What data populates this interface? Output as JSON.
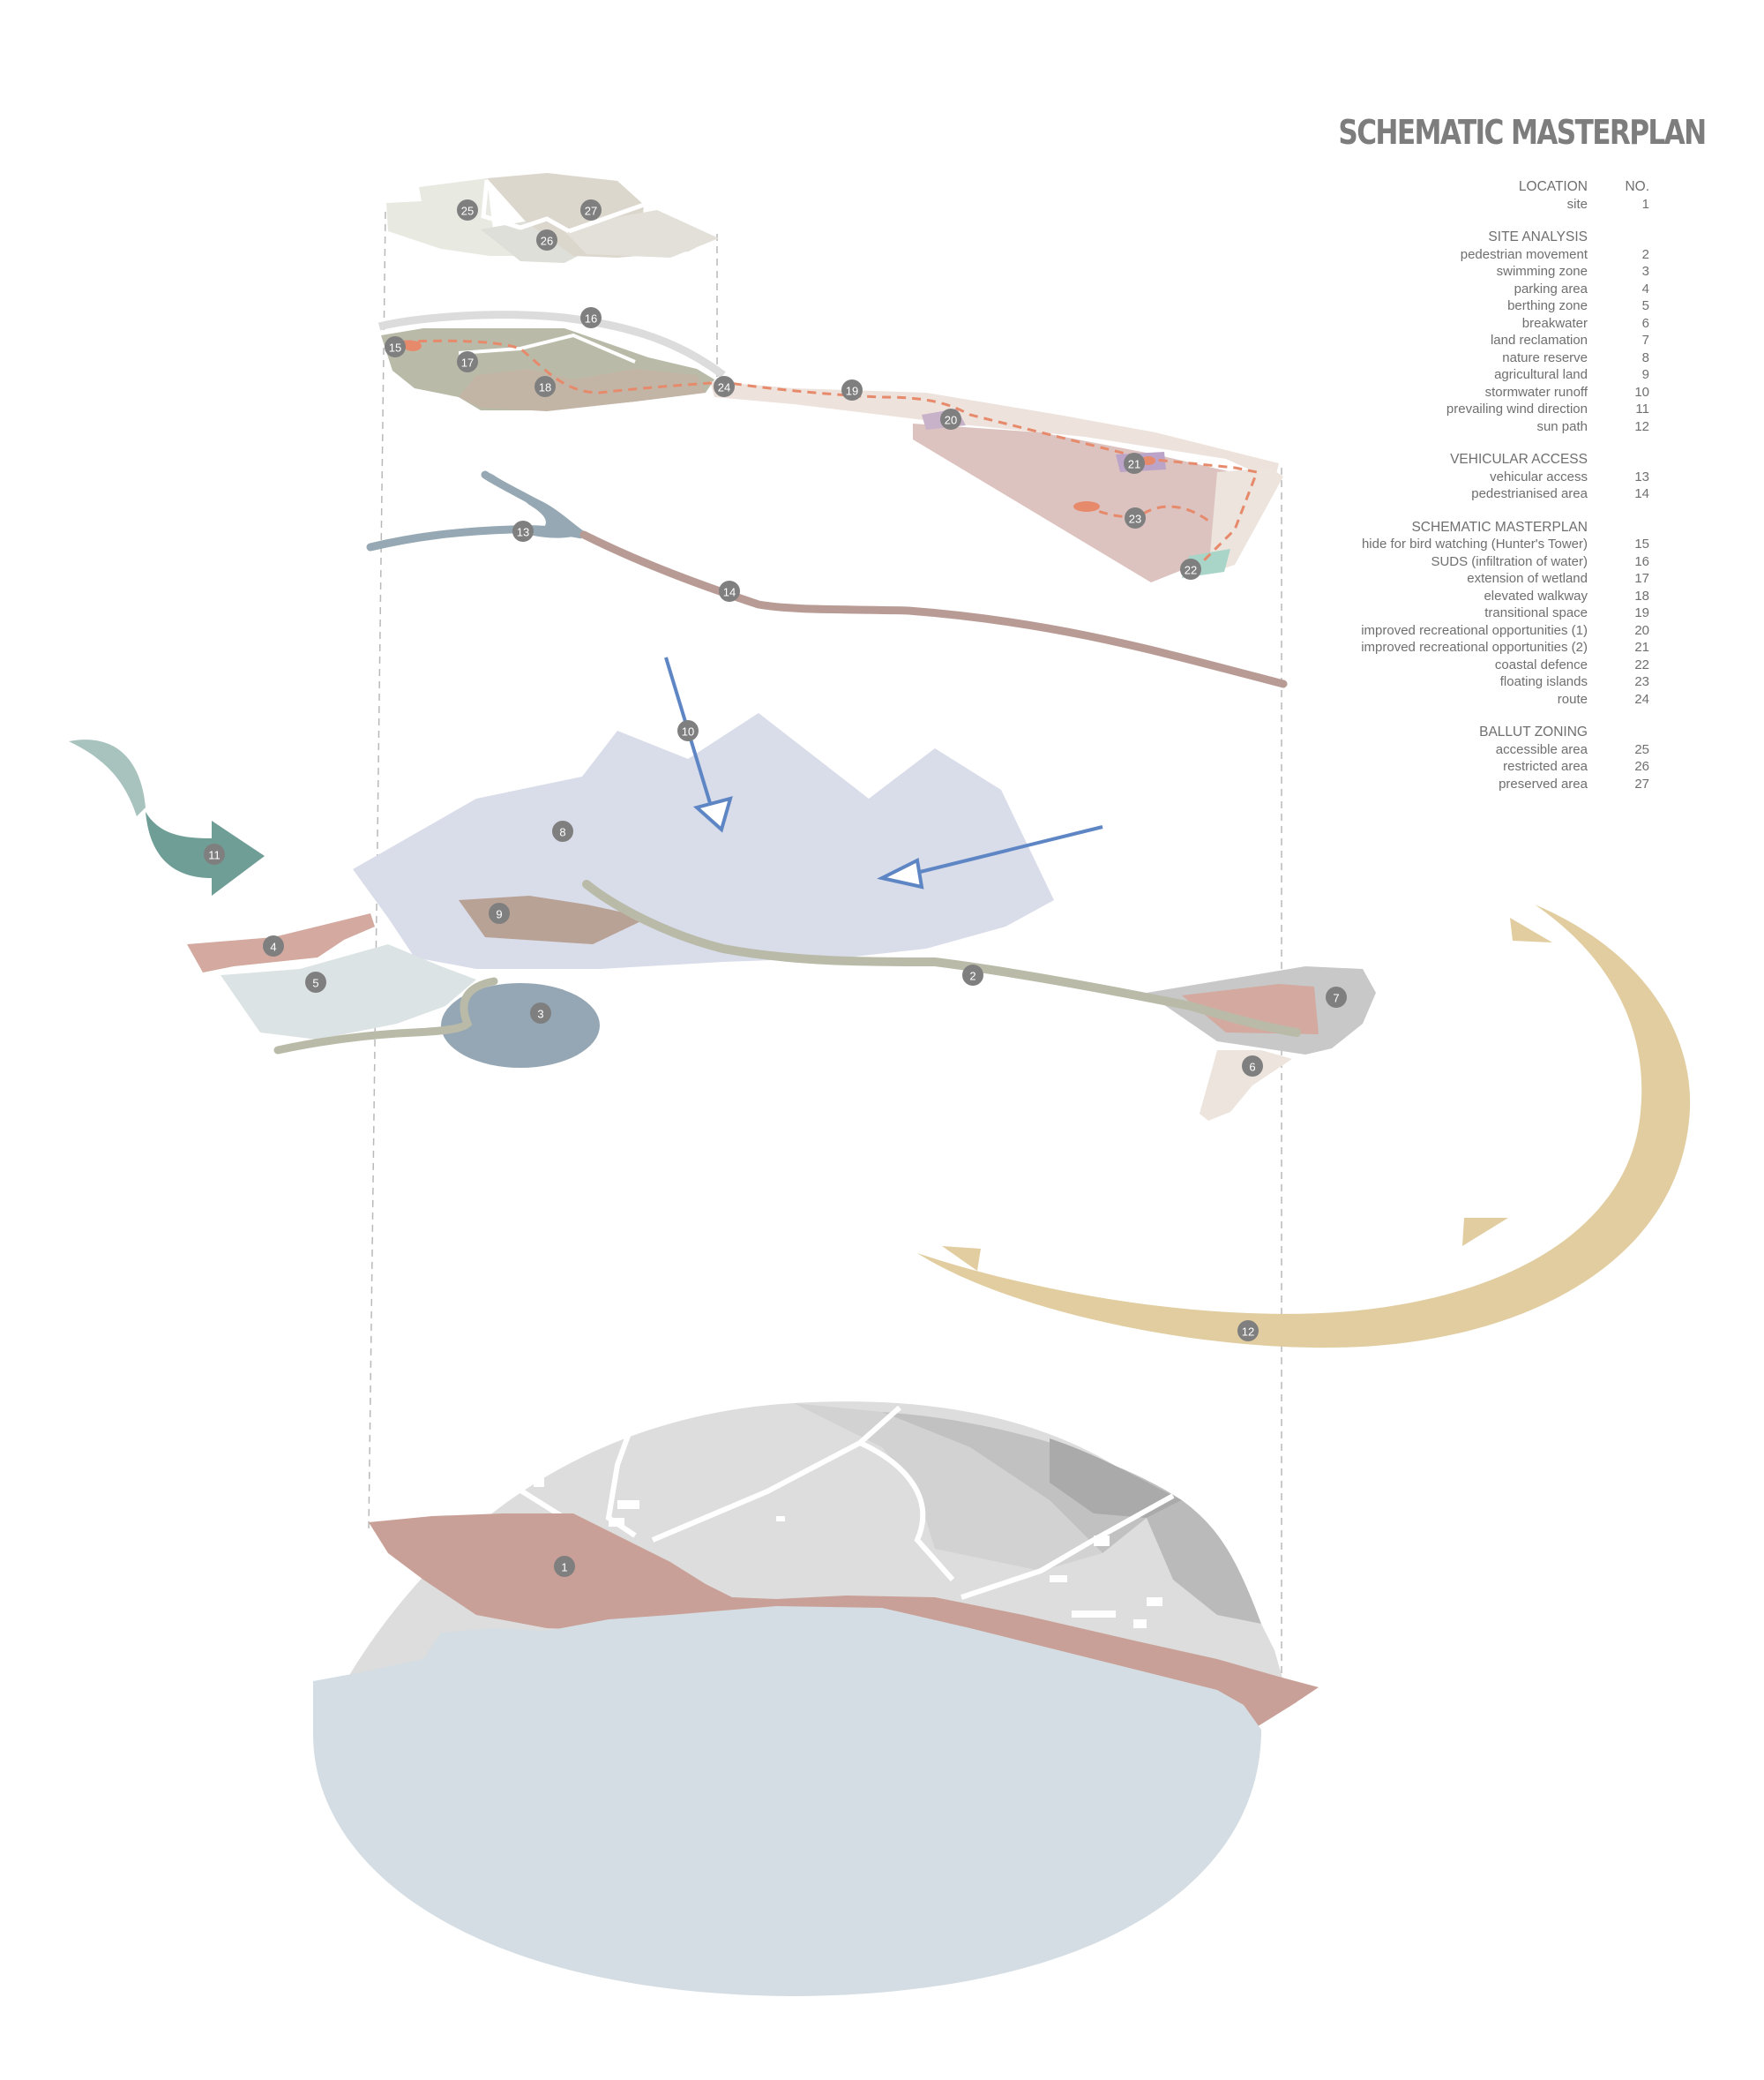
{
  "title": "SCHEMATIC MASTERPLAN",
  "legend": {
    "no_header": "NO.",
    "sections": [
      {
        "heading": "LOCATION",
        "items": [
          {
            "label": "site",
            "no": "1"
          }
        ]
      },
      {
        "heading": "SITE ANALYSIS",
        "items": [
          {
            "label": "pedestrian movement",
            "no": "2"
          },
          {
            "label": "swimming zone",
            "no": "3"
          },
          {
            "label": "parking area",
            "no": "4"
          },
          {
            "label": "berthing zone",
            "no": "5"
          },
          {
            "label": "breakwater",
            "no": "6"
          },
          {
            "label": "land reclamation",
            "no": "7"
          },
          {
            "label": "nature reserve",
            "no": "8"
          },
          {
            "label": "agricultural land",
            "no": "9"
          },
          {
            "label": "stormwater runoff",
            "no": "10"
          },
          {
            "label": "prevailing wind direction",
            "no": "11"
          },
          {
            "label": "sun path",
            "no": "12"
          }
        ]
      },
      {
        "heading": "VEHICULAR ACCESS",
        "items": [
          {
            "label": "vehicular access",
            "no": "13"
          },
          {
            "label": "pedestrianised area",
            "no": "14"
          }
        ]
      },
      {
        "heading": "SCHEMATIC MASTERPLAN",
        "items": [
          {
            "label": "hide for bird watching (Hunter's Tower)",
            "no": "15"
          },
          {
            "label": "SUDS (infiltration of water)",
            "no": "16"
          },
          {
            "label": "extension of wetland",
            "no": "17"
          },
          {
            "label": "elevated walkway",
            "no": "18"
          },
          {
            "label": "transitional space",
            "no": "19"
          },
          {
            "label": "improved recreational opportunities (1)",
            "no": "20"
          },
          {
            "label": "improved recreational opportunities (2)",
            "no": "21"
          },
          {
            "label": "coastal defence",
            "no": "22"
          },
          {
            "label": "floating islands",
            "no": "23"
          },
          {
            "label": "route",
            "no": "24"
          }
        ]
      },
      {
        "heading": "BALLUT ZONING",
        "items": [
          {
            "label": "accessible area",
            "no": "25"
          },
          {
            "label": "restricted area",
            "no": "26"
          },
          {
            "label": "preserved area",
            "no": "27"
          }
        ]
      }
    ]
  },
  "markers": [
    "1",
    "2",
    "3",
    "4",
    "5",
    "6",
    "7",
    "8",
    "9",
    "10",
    "11",
    "12",
    "13",
    "14",
    "15",
    "16",
    "17",
    "18",
    "19",
    "20",
    "21",
    "22",
    "23",
    "24",
    "25",
    "26",
    "27"
  ],
  "colors": {
    "site": "#c9a097",
    "sea": "#d4dde3",
    "nature_reserve": "#d9dce9",
    "agricultural": "#b8a295",
    "swimming": "#95a7b4",
    "wind": "#6f9e97",
    "stormwater": "#5e86c4",
    "sun_path": "#e1cd9f",
    "route": "#e78a6c",
    "wetland": "#b9bba8",
    "vehicular": "#95a8b3",
    "pedestrianised": "#b99b95",
    "marker": "#7f7f7f"
  }
}
